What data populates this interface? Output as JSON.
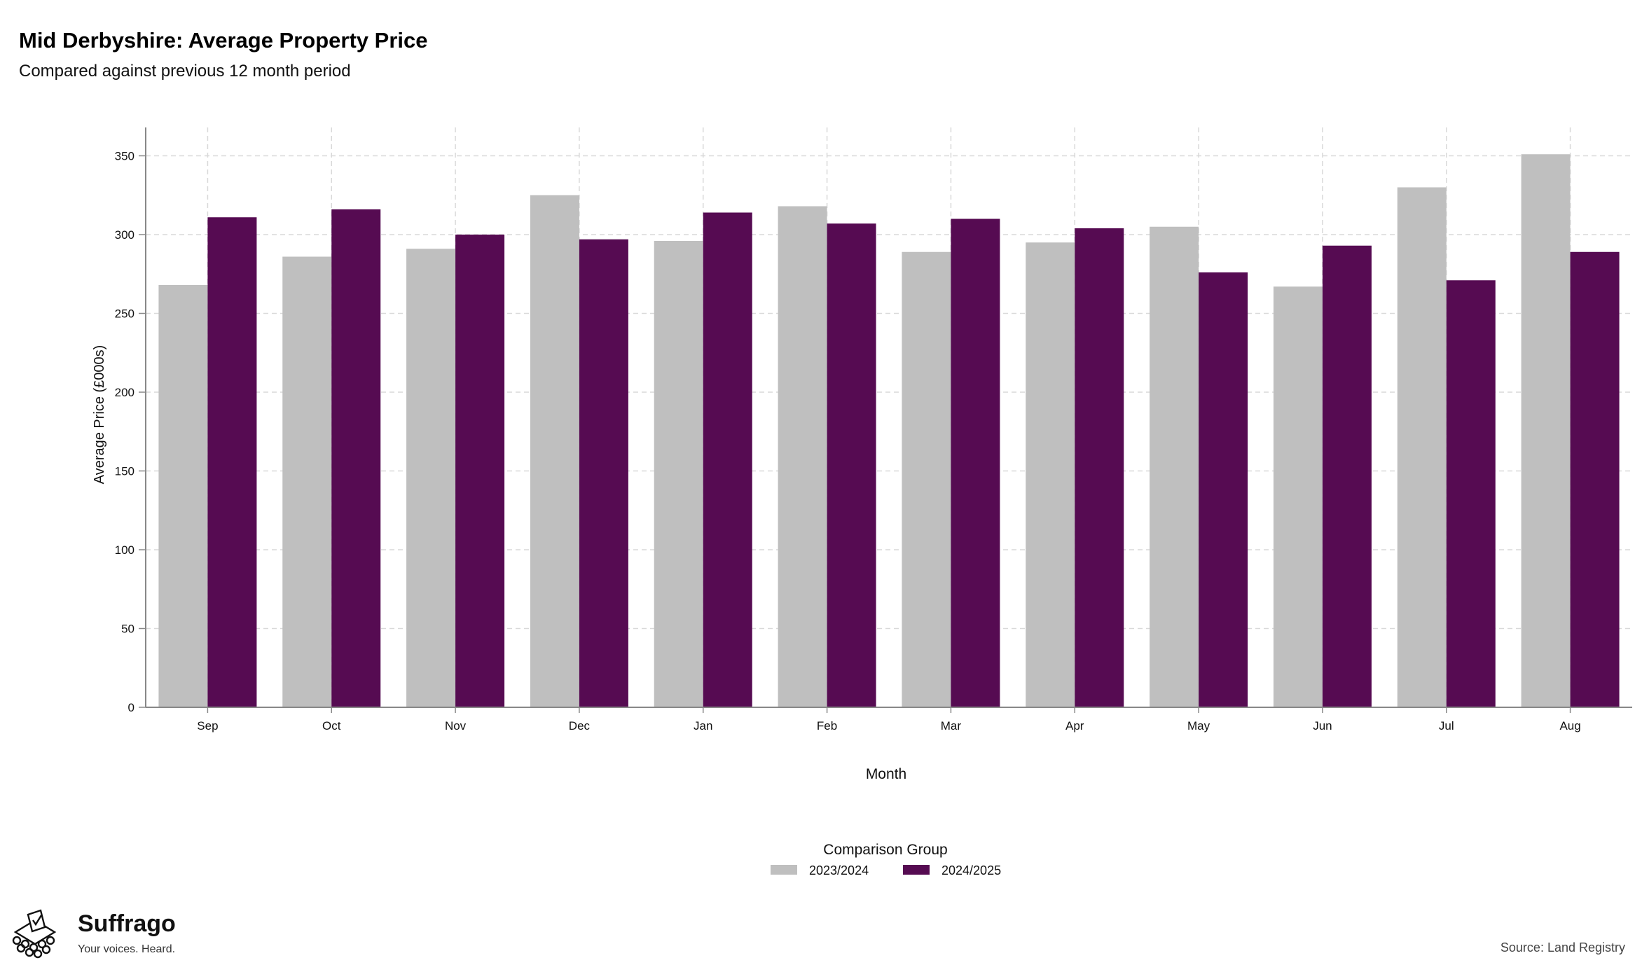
{
  "title": "Mid Derbyshire: Average Property Price",
  "subtitle": "Compared against previous 12 month period",
  "chart_data": {
    "type": "bar",
    "categories": [
      "Sep",
      "Oct",
      "Nov",
      "Dec",
      "Jan",
      "Feb",
      "Mar",
      "Apr",
      "May",
      "Jun",
      "Jul",
      "Aug"
    ],
    "series": [
      {
        "name": "2023/2024",
        "color": "#bfbfbf",
        "values": [
          268,
          286,
          291,
          325,
          296,
          318,
          289,
          295,
          305,
          267,
          330,
          351
        ]
      },
      {
        "name": "2024/2025",
        "color": "#560b52",
        "values": [
          311,
          316,
          300,
          297,
          314,
          307,
          310,
          304,
          276,
          293,
          271,
          289
        ]
      }
    ],
    "xlabel": "Month",
    "ylabel": "Average Price (£000s)",
    "ylim": [
      0,
      368
    ],
    "yticks": [
      0,
      50,
      100,
      150,
      200,
      250,
      300,
      350
    ],
    "grid": true,
    "legend_title": "Comparison Group",
    "legend_position": "bottom"
  },
  "brand": {
    "name": "Suffrago",
    "tagline": "Your voices. Heard."
  },
  "source": "Source: Land Registry"
}
